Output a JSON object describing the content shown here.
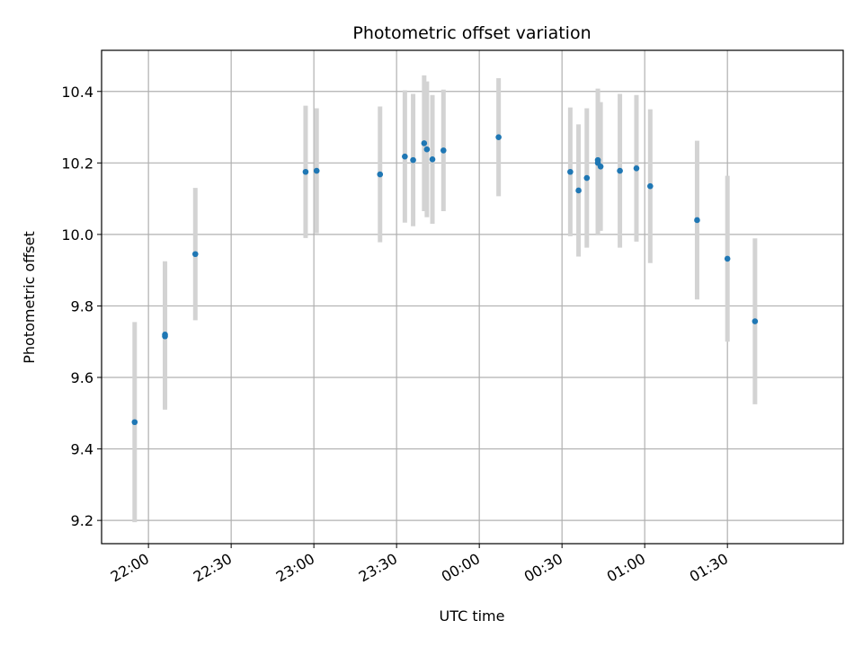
{
  "chart_data": {
    "type": "scatter",
    "title": "Photometric offset variation",
    "xlabel": "UTC time",
    "ylabel": "Photometric offset",
    "ylim": [
      9.135,
      10.515
    ],
    "xlim": [
      "21:43",
      "02:12"
    ],
    "grid": true,
    "x_ticks": [
      "22:00",
      "22:30",
      "23:00",
      "23:30",
      "00:00",
      "00:30",
      "01:00",
      "01:30"
    ],
    "y_ticks": [
      9.2,
      9.4,
      9.6,
      9.8,
      10.0,
      10.2,
      10.4
    ],
    "points": [
      {
        "x": "21:55",
        "y": 9.475,
        "err": 0.28
      },
      {
        "x": "22:06",
        "y": 9.715,
        "err": 0.205
      },
      {
        "x": "22:06",
        "y": 9.72,
        "err": 0.205
      },
      {
        "x": "22:17",
        "y": 9.945,
        "err": 0.185
      },
      {
        "x": "22:57",
        "y": 10.175,
        "err": 0.185
      },
      {
        "x": "23:01",
        "y": 10.178,
        "err": 0.175
      },
      {
        "x": "23:24",
        "y": 10.168,
        "err": 0.19
      },
      {
        "x": "23:33",
        "y": 10.218,
        "err": 0.185
      },
      {
        "x": "23:36",
        "y": 10.208,
        "err": 0.185
      },
      {
        "x": "23:40",
        "y": 10.255,
        "err": 0.19
      },
      {
        "x": "23:41",
        "y": 10.238,
        "err": 0.19
      },
      {
        "x": "23:43",
        "y": 10.21,
        "err": 0.18
      },
      {
        "x": "23:47",
        "y": 10.235,
        "err": 0.17
      },
      {
        "x": "00:07",
        "y": 10.272,
        "err": 0.165
      },
      {
        "x": "00:33",
        "y": 10.175,
        "err": 0.18
      },
      {
        "x": "00:36",
        "y": 10.123,
        "err": 0.185
      },
      {
        "x": "00:39",
        "y": 10.158,
        "err": 0.195
      },
      {
        "x": "00:43",
        "y": 10.2,
        "err": 0.2
      },
      {
        "x": "00:43",
        "y": 10.208,
        "err": 0.2
      },
      {
        "x": "00:44",
        "y": 10.19,
        "err": 0.18
      },
      {
        "x": "00:51",
        "y": 10.178,
        "err": 0.215
      },
      {
        "x": "00:57",
        "y": 10.185,
        "err": 0.205
      },
      {
        "x": "01:02",
        "y": 10.135,
        "err": 0.215
      },
      {
        "x": "01:19",
        "y": 10.04,
        "err": 0.222
      },
      {
        "x": "01:30",
        "y": 9.932,
        "err": 0.232
      },
      {
        "x": "01:40",
        "y": 9.757,
        "err": 0.232
      }
    ],
    "colors": {
      "point": "#1f77b4",
      "errorbar": "#d3d3d3",
      "grid": "#b0b0b0",
      "axes": "#000000"
    }
  }
}
